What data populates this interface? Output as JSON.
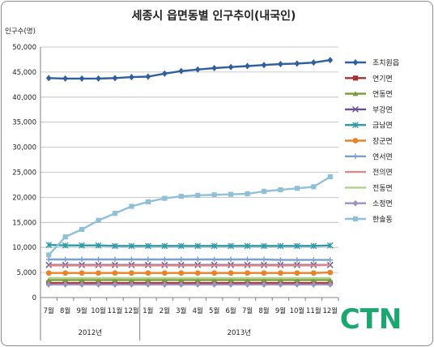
{
  "chart_data": {
    "type": "line",
    "title": "세종시 읍면동별 인구추이(내국인)",
    "ylabel": "인구수(명)",
    "xlabel": "",
    "ylim": [
      0,
      50000
    ],
    "y_ticks": [
      "0",
      "5,000",
      "10,000",
      "15,000",
      "20,000",
      "25,000",
      "30,000",
      "35,000",
      "40,000",
      "45,000",
      "50,000"
    ],
    "y_tick_values": [
      0,
      5000,
      10000,
      15000,
      20000,
      25000,
      30000,
      35000,
      40000,
      45000,
      50000
    ],
    "categories": [
      "7월",
      "8월",
      "9월",
      "10월",
      "11월",
      "12월",
      "1월",
      "2월",
      "3월",
      "4월",
      "5월",
      "6월",
      "7월",
      "8월",
      "9월",
      "10월",
      "11월",
      "12월"
    ],
    "year_groups": [
      {
        "label": "2012년",
        "span": 6
      },
      {
        "label": "2013년",
        "span": 12
      }
    ],
    "grid": true,
    "legend_position": "right",
    "series": [
      {
        "name": "조치원읍",
        "color": "#2f5f9e",
        "marker": "diamond",
        "values": [
          43800,
          43700,
          43700,
          43700,
          43800,
          44000,
          44100,
          44700,
          45200,
          45500,
          45800,
          46000,
          46200,
          46400,
          46600,
          46700,
          46900,
          47400
        ]
      },
      {
        "name": "연기면",
        "color": "#a83232",
        "marker": "square",
        "values": [
          2900,
          2900,
          2900,
          2900,
          2900,
          2900,
          2900,
          2900,
          2900,
          2900,
          2900,
          2900,
          2900,
          2900,
          2900,
          2900,
          2900,
          2900
        ]
      },
      {
        "name": "연동면",
        "color": "#7a9a3a",
        "marker": "triangle",
        "values": [
          3500,
          3500,
          3500,
          3500,
          3500,
          3500,
          3500,
          3500,
          3500,
          3500,
          3500,
          3500,
          3500,
          3500,
          3500,
          3500,
          3500,
          3500
        ]
      },
      {
        "name": "부강면",
        "color": "#6a4f8f",
        "marker": "x",
        "values": [
          6500,
          6500,
          6500,
          6500,
          6500,
          6500,
          6500,
          6500,
          6500,
          6500,
          6500,
          6500,
          6500,
          6500,
          6500,
          6500,
          6500,
          6500
        ]
      },
      {
        "name": "금남면",
        "color": "#2f9aa8",
        "marker": "star",
        "values": [
          10500,
          10400,
          10400,
          10400,
          10300,
          10300,
          10300,
          10300,
          10300,
          10300,
          10300,
          10300,
          10300,
          10300,
          10300,
          10300,
          10300,
          10400
        ]
      },
      {
        "name": "장군면",
        "color": "#e8832a",
        "marker": "circle",
        "values": [
          4900,
          4900,
          4900,
          4900,
          4900,
          4900,
          4900,
          4900,
          4900,
          4900,
          4900,
          4900,
          4900,
          4900,
          4900,
          4900,
          4900,
          5000
        ]
      },
      {
        "name": "연서면",
        "color": "#7aa0d0",
        "marker": "plus",
        "values": [
          7600,
          7600,
          7600,
          7600,
          7600,
          7600,
          7600,
          7600,
          7600,
          7600,
          7600,
          7600,
          7600,
          7600,
          7500,
          7500,
          7500,
          7500
        ]
      },
      {
        "name": "전의면",
        "color": "#d98a8a",
        "marker": "none",
        "values": [
          6400,
          6400,
          6400,
          6400,
          6400,
          6400,
          6400,
          6400,
          6400,
          6400,
          6400,
          6400,
          6400,
          6400,
          6400,
          6400,
          6400,
          6500
        ]
      },
      {
        "name": "전동면",
        "color": "#b3cf8a",
        "marker": "none",
        "values": [
          3900,
          3900,
          3900,
          3900,
          3900,
          3900,
          3900,
          3900,
          3900,
          3900,
          3900,
          3900,
          3900,
          3900,
          3900,
          3900,
          3900,
          3900
        ]
      },
      {
        "name": "소정면",
        "color": "#9f8fbf",
        "marker": "diamond",
        "values": [
          2600,
          2600,
          2600,
          2600,
          2600,
          2600,
          2600,
          2600,
          2600,
          2600,
          2600,
          2600,
          2600,
          2600,
          2600,
          2600,
          2600,
          2600
        ]
      },
      {
        "name": "한솔동",
        "color": "#8fc0d8",
        "marker": "square",
        "values": [
          8500,
          12100,
          13600,
          15400,
          16800,
          18200,
          19100,
          19800,
          20200,
          20400,
          20500,
          20600,
          20700,
          21200,
          21500,
          21800,
          22100,
          24100
        ]
      }
    ]
  },
  "watermark": {
    "text": "CTN",
    "color": "#1aa870"
  }
}
